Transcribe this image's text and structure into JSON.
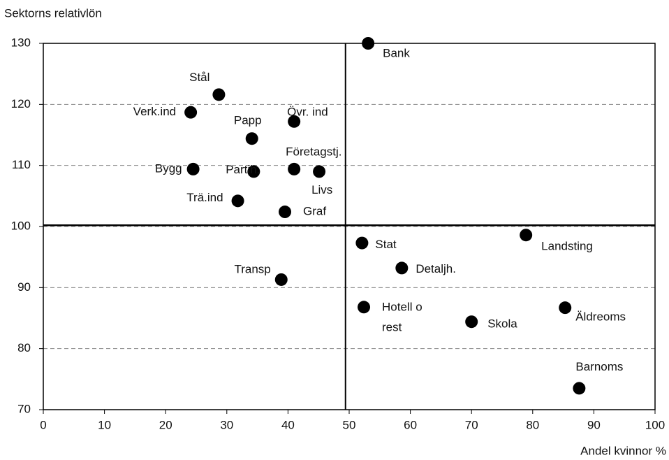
{
  "chart_data": {
    "type": "scatter",
    "y_axis_label": "Sektorns relativlön",
    "x_axis_label": "Andel kvinnor %",
    "xlim": [
      0,
      100
    ],
    "xticks": [
      0,
      10,
      20,
      30,
      40,
      50,
      60,
      70,
      80,
      90,
      100
    ],
    "ylim": [
      70,
      130
    ],
    "yticks": [
      70,
      80,
      90,
      100,
      110,
      120,
      130
    ],
    "grid": true,
    "color": "#000000",
    "reference_lines": {
      "x": 49.4,
      "y": 100.2
    },
    "labels": [
      "Bank",
      "Stål",
      "Verk.ind",
      "Övr. ind",
      "Papp",
      "Bygg",
      "Partih.",
      "Företagstj.",
      "Livs",
      "Trä.ind",
      "Graf",
      "Stat",
      "Landsting",
      "Detaljh.",
      "Transp",
      "Hotell o\nrest",
      "Skola",
      "Äldreoms",
      "Barnoms"
    ],
    "x": [
      53.1,
      28.7,
      24.1,
      41.0,
      34.1,
      24.5,
      34.4,
      41.0,
      45.1,
      31.8,
      39.5,
      52.1,
      78.9,
      58.6,
      38.9,
      52.4,
      70.0,
      85.3,
      87.6
    ],
    "values": [
      130,
      121.6,
      118.7,
      117.2,
      114.4,
      109.4,
      109.0,
      109.4,
      109.0,
      104.2,
      102.4,
      97.3,
      98.6,
      93.2,
      91.3,
      86.8,
      84.4,
      86.7,
      73.5
    ]
  }
}
